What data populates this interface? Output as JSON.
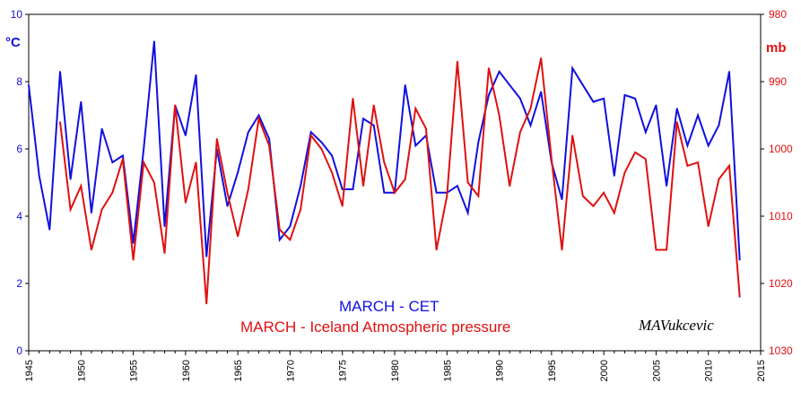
{
  "chart_data": {
    "type": "line",
    "left_axis": {
      "unit": "°C",
      "ylim": [
        0,
        10
      ],
      "ticks": [
        "0",
        "2",
        "4",
        "6",
        "8",
        "10"
      ],
      "color": "#1010e0"
    },
    "right_axis": {
      "unit": "mb",
      "ylim": [
        980,
        1030
      ],
      "inverted": true,
      "ticks": [
        "980",
        "990",
        "1000",
        "1010",
        "1020",
        "1030"
      ],
      "color": "#e01010"
    },
    "x_axis": {
      "xlim": [
        1945,
        2015
      ],
      "ticks": [
        "1945",
        "1950",
        "1955",
        "1960",
        "1965",
        "1970",
        "1975",
        "1980",
        "1985",
        "1990",
        "1995",
        "2000",
        "2005",
        "2010",
        "2015"
      ]
    },
    "grid": false,
    "series": [
      {
        "name": "MARCH - CET",
        "color": "#1010e0",
        "axis": "left",
        "x": [
          1945,
          1946,
          1947,
          1948,
          1949,
          1950,
          1951,
          1952,
          1953,
          1954,
          1955,
          1956,
          1957,
          1958,
          1959,
          1960,
          1961,
          1962,
          1963,
          1964,
          1965,
          1966,
          1967,
          1968,
          1969,
          1970,
          1971,
          1972,
          1973,
          1974,
          1975,
          1976,
          1977,
          1978,
          1979,
          1980,
          1981,
          1982,
          1983,
          1984,
          1985,
          1986,
          1987,
          1988,
          1989,
          1990,
          1991,
          1992,
          1993,
          1994,
          1995,
          1996,
          1997,
          1998,
          1999,
          2000,
          2001,
          2002,
          2003,
          2004,
          2005,
          2006,
          2007,
          2008,
          2009,
          2010,
          2011,
          2012,
          2013
        ],
        "values": [
          7.9,
          5.2,
          3.6,
          8.3,
          5.1,
          7.4,
          4.1,
          6.6,
          5.6,
          5.8,
          3.2,
          6.0,
          9.2,
          3.7,
          7.3,
          6.4,
          8.2,
          2.8,
          6.0,
          4.3,
          5.3,
          6.5,
          7.0,
          6.3,
          3.3,
          3.7,
          4.9,
          6.5,
          6.2,
          5.8,
          4.8,
          4.8,
          6.9,
          6.7,
          4.7,
          4.7,
          7.9,
          6.1,
          6.4,
          4.7,
          4.7,
          4.9,
          4.1,
          6.2,
          7.6,
          8.3,
          7.9,
          7.5,
          6.7,
          7.7,
          5.6,
          4.5,
          8.4,
          7.9,
          7.4,
          7.5,
          5.2,
          7.6,
          7.5,
          6.5,
          7.3,
          4.9,
          7.2,
          6.1,
          7.0,
          6.1,
          6.7,
          8.3,
          2.7
        ]
      },
      {
        "name": "MARCH - Iceland Atmospheric pressure",
        "color": "#e01010",
        "axis": "right",
        "x": [
          1948,
          1949,
          1950,
          1951,
          1952,
          1953,
          1954,
          1955,
          1956,
          1957,
          1958,
          1959,
          1960,
          1961,
          1962,
          1963,
          1964,
          1965,
          1966,
          1967,
          1968,
          1969,
          1970,
          1971,
          1972,
          1973,
          1974,
          1975,
          1976,
          1977,
          1978,
          1979,
          1980,
          1981,
          1982,
          1983,
          1984,
          1985,
          1986,
          1987,
          1988,
          1989,
          1990,
          1991,
          1992,
          1993,
          1994,
          1995,
          1996,
          1997,
          1998,
          1999,
          2000,
          2001,
          2002,
          2003,
          2004,
          2005,
          2006,
          2007,
          2008,
          2009,
          2010,
          2011,
          2012,
          2013
        ],
        "values": [
          996,
          1009,
          1005.5,
          1015,
          1009,
          1006.5,
          1001.5,
          1016.5,
          1002,
          1005,
          1015.5,
          993.5,
          1008,
          1002,
          1023,
          998.5,
          1006.5,
          1013,
          1006,
          995.5,
          999.5,
          1012,
          1013.5,
          1009,
          998,
          1000,
          1003.5,
          1008.5,
          992.5,
          1005.5,
          993.5,
          1002,
          1006.5,
          1004.5,
          994,
          997,
          1015,
          1007,
          987,
          1005,
          1007,
          988,
          995,
          1005.5,
          997.5,
          994,
          986.5,
          1001.5,
          1015,
          998,
          1007,
          1008.5,
          1006.5,
          1009.5,
          1003.5,
          1000.5,
          1001.5,
          1015,
          1015,
          996,
          1002.5,
          1002,
          1011.5,
          1004.5,
          1002.5,
          1022
        ]
      }
    ],
    "legend": [
      {
        "text": "MARCH - CET",
        "color": "#1010e0"
      },
      {
        "text": "MARCH - Iceland Atmospheric pressure",
        "color": "#e01010"
      }
    ],
    "signature": "MAVukcevic"
  }
}
